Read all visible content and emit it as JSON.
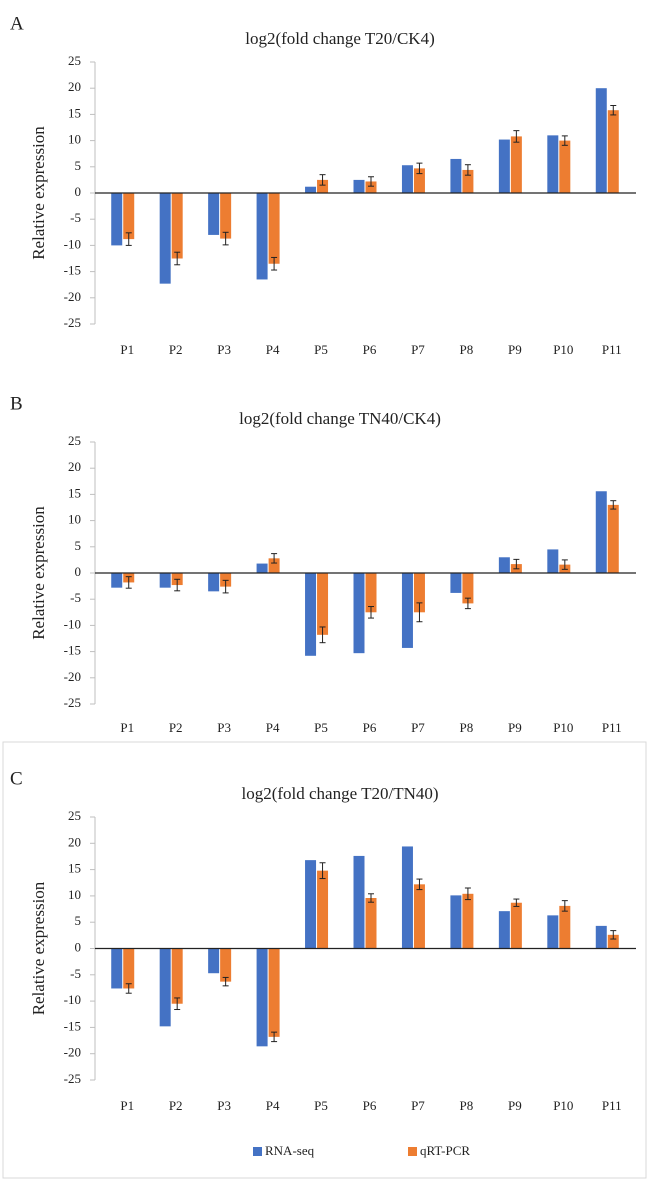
{
  "chart_data": [
    {
      "type": "bar",
      "label": "A",
      "title": "log2(fold change T20/CK4)",
      "y_label": "Relative expression",
      "categories": [
        "P1",
        "P2",
        "P3",
        "P4",
        "P5",
        "P6",
        "P7",
        "P8",
        "P9",
        "P10",
        "P11"
      ],
      "series": [
        {
          "name": "RNA-seq",
          "color": "#4472c4",
          "values": [
            -10,
            -17.3,
            -8,
            -16.5,
            1.2,
            2.5,
            5.3,
            6.5,
            10.2,
            11,
            20
          ]
        },
        {
          "name": "qRT-PCR",
          "color": "#ed7d31",
          "values": [
            -8.8,
            -12.5,
            -8.7,
            -13.5,
            2.5,
            2.2,
            4.7,
            4.4,
            10.8,
            10,
            15.8
          ],
          "errors": [
            1.2,
            1.2,
            1.2,
            1.2,
            1,
            0.9,
            1,
            1,
            1.1,
            0.9,
            0.9
          ]
        }
      ],
      "ylim": [
        -25,
        25
      ],
      "yticks": [
        -25,
        -20,
        -15,
        -10,
        -5,
        0,
        5,
        10,
        15,
        20,
        25
      ]
    },
    {
      "type": "bar",
      "label": "B",
      "title": "log2(fold change TN40/CK4)",
      "y_label": "Relative expression",
      "categories": [
        "P1",
        "P2",
        "P3",
        "P4",
        "P5",
        "P6",
        "P7",
        "P8",
        "P9",
        "P10",
        "P11"
      ],
      "series": [
        {
          "color": "#4472c4",
          "values": [
            -2.8,
            -2.8,
            -3.5,
            1.8,
            -15.8,
            -15.3,
            -14.3,
            -3.8,
            3,
            4.5,
            15.6
          ]
        },
        {
          "color": "#ed7d31",
          "values": [
            -1.8,
            -2.3,
            -2.6,
            2.8,
            -11.8,
            -7.5,
            -7.5,
            -5.8,
            1.7,
            1.6,
            13
          ],
          "errors": [
            1.1,
            1.1,
            1.2,
            0.9,
            1.5,
            1.1,
            1.8,
            1,
            0.9,
            0.9,
            0.8
          ]
        }
      ],
      "ylim": [
        -25,
        25
      ],
      "yticks": [
        -25,
        -20,
        -15,
        -10,
        -5,
        0,
        5,
        10,
        15,
        20,
        25
      ]
    },
    {
      "type": "bar",
      "label": "C",
      "title": "log2(fold change T20/TN40)",
      "y_label": "Relative expression",
      "categories": [
        "P1",
        "P2",
        "P3",
        "P4",
        "P5",
        "P6",
        "P7",
        "P8",
        "P9",
        "P10",
        "P11"
      ],
      "series": [
        {
          "color": "#4472c4",
          "values": [
            -7.6,
            -14.8,
            -4.7,
            -18.6,
            16.8,
            17.6,
            19.4,
            10.1,
            7.1,
            6.3,
            4.3
          ]
        },
        {
          "color": "#ed7d31",
          "values": [
            -7.6,
            -10.5,
            -6.3,
            -16.8,
            14.8,
            9.6,
            12.2,
            10.4,
            8.7,
            8.1,
            2.6
          ],
          "errors": [
            0.9,
            1.1,
            0.8,
            0.9,
            1.5,
            0.8,
            1,
            1.1,
            0.7,
            1,
            0.8
          ]
        }
      ],
      "ylim": [
        -25,
        25
      ],
      "yticks": [
        -25,
        -20,
        -15,
        -10,
        -5,
        0,
        5,
        10,
        15,
        20,
        25
      ]
    }
  ]
}
